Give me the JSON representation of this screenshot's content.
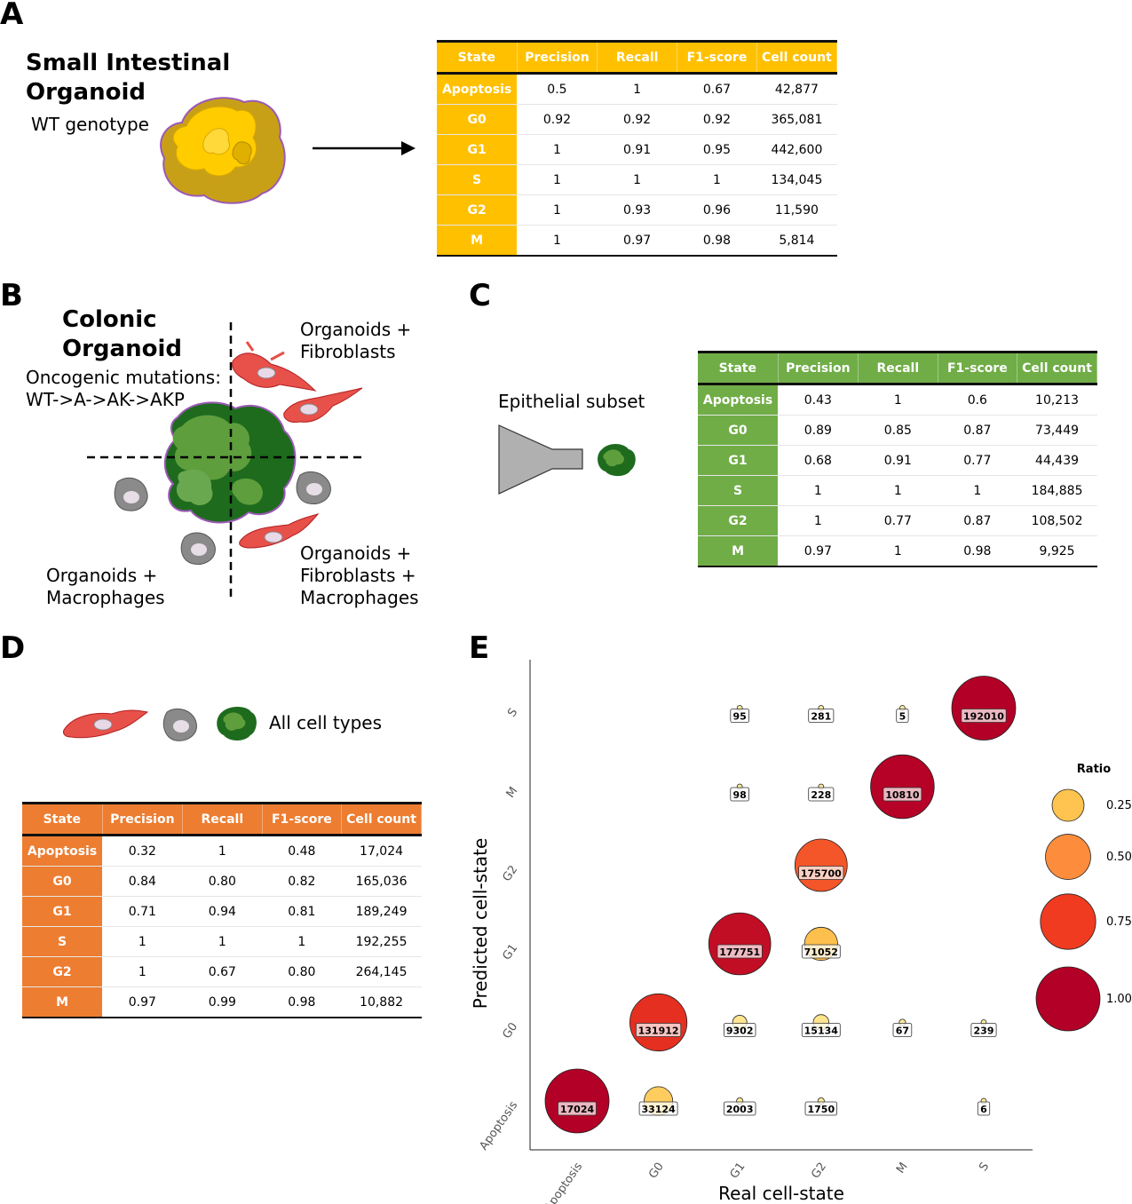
{
  "panels": {
    "A": "A",
    "B": "B",
    "C": "C",
    "D": "D",
    "E": "E"
  },
  "panelA": {
    "title_line1": "Small Intestinal",
    "title_line2": "Organoid",
    "subtitle": "WT genotype",
    "table": {
      "headers": [
        "State",
        "Precision",
        "Recall",
        "F1-score",
        "Cell count"
      ],
      "rows": [
        [
          "Apoptosis",
          "0.5",
          "1",
          "0.67",
          "42,877"
        ],
        [
          "G0",
          "0.92",
          "0.92",
          "0.92",
          "365,081"
        ],
        [
          "G1",
          "1",
          "0.91",
          "0.95",
          "442,600"
        ],
        [
          "S",
          "1",
          "1",
          "1",
          "134,045"
        ],
        [
          "G2",
          "1",
          "0.93",
          "0.96",
          "11,590"
        ],
        [
          "M",
          "1",
          "0.97",
          "0.98",
          "5,814"
        ]
      ]
    }
  },
  "panelB": {
    "title_line1": "Colonic",
    "title_line2": "Organoid",
    "mutations_line1": "Oncogenic mutations:",
    "mutations_line2": "WT->A->AK->AKP",
    "q_tr_line1": "Organoids +",
    "q_tr_line2": "Fibroblasts",
    "q_bl_line1": "Organoids +",
    "q_bl_line2": "Macrophages",
    "q_br_line1": "Organoids +",
    "q_br_line2": "Fibroblasts +",
    "q_br_line3": "Macrophages"
  },
  "panelC": {
    "label": "Epithelial subset",
    "table": {
      "headers": [
        "State",
        "Precision",
        "Recall",
        "F1-score",
        "Cell count"
      ],
      "rows": [
        [
          "Apoptosis",
          "0.43",
          "1",
          "0.6",
          "10,213"
        ],
        [
          "G0",
          "0.89",
          "0.85",
          "0.87",
          "73,449"
        ],
        [
          "G1",
          "0.68",
          "0.91",
          "0.77",
          "44,439"
        ],
        [
          "S",
          "1",
          "1",
          "1",
          "184,885"
        ],
        [
          "G2",
          "1",
          "0.77",
          "0.87",
          "108,502"
        ],
        [
          "M",
          "0.97",
          "1",
          "0.98",
          "9,925"
        ]
      ]
    }
  },
  "panelD": {
    "label": "All cell types",
    "table": {
      "headers": [
        "State",
        "Precision",
        "Recall",
        "F1-score",
        "Cell count"
      ],
      "rows": [
        [
          "Apoptosis",
          "0.32",
          "1",
          "0.48",
          "17,024"
        ],
        [
          "G0",
          "0.84",
          "0.80",
          "0.82",
          "165,036"
        ],
        [
          "G1",
          "0.71",
          "0.94",
          "0.81",
          "189,249"
        ],
        [
          "S",
          "1",
          "1",
          "1",
          "192,255"
        ],
        [
          "G2",
          "1",
          "0.67",
          "0.80",
          "264,145"
        ],
        [
          "M",
          "0.97",
          "0.99",
          "0.98",
          "10,882"
        ]
      ]
    }
  },
  "chart_data": {
    "type": "scatter",
    "xlabel": "Real cell-state",
    "ylabel": "Predicted cell-state",
    "x_categories": [
      "Apoptosis",
      "G0",
      "G1",
      "G2",
      "M",
      "S"
    ],
    "y_categories": [
      "Apoptosis",
      "G0",
      "G1",
      "G2",
      "M",
      "S"
    ],
    "legend_title": "Ratio",
    "legend_values": [
      0.25,
      0.5,
      0.75,
      1.0
    ],
    "legend_labels": [
      "0.25",
      "0.50",
      "0.75",
      "1.00"
    ],
    "legend_position": "right",
    "points": [
      {
        "x": "Apoptosis",
        "y": "Apoptosis",
        "count": 17024,
        "ratio": 1.0
      },
      {
        "x": "G0",
        "y": "Apoptosis",
        "count": 33124,
        "ratio": 0.2
      },
      {
        "x": "G1",
        "y": "Apoptosis",
        "count": 2003,
        "ratio": 0.01
      },
      {
        "x": "G2",
        "y": "Apoptosis",
        "count": 1750,
        "ratio": 0.01
      },
      {
        "x": "S",
        "y": "Apoptosis",
        "count": 6,
        "ratio": 0.0
      },
      {
        "x": "G0",
        "y": "G0",
        "count": 131912,
        "ratio": 0.8
      },
      {
        "x": "G1",
        "y": "G0",
        "count": 9302,
        "ratio": 0.05
      },
      {
        "x": "G2",
        "y": "G0",
        "count": 15134,
        "ratio": 0.06
      },
      {
        "x": "M",
        "y": "G0",
        "count": 67,
        "ratio": 0.01
      },
      {
        "x": "S",
        "y": "G0",
        "count": 239,
        "ratio": 0.0
      },
      {
        "x": "G1",
        "y": "G1",
        "count": 177751,
        "ratio": 0.94
      },
      {
        "x": "G2",
        "y": "G1",
        "count": 71052,
        "ratio": 0.27
      },
      {
        "x": "G2",
        "y": "G2",
        "count": 175700,
        "ratio": 0.67
      },
      {
        "x": "G1",
        "y": "M",
        "count": 98,
        "ratio": 0.0
      },
      {
        "x": "G2",
        "y": "M",
        "count": 228,
        "ratio": 0.0
      },
      {
        "x": "M",
        "y": "M",
        "count": 10810,
        "ratio": 0.99
      },
      {
        "x": "G1",
        "y": "S",
        "count": 95,
        "ratio": 0.0
      },
      {
        "x": "G2",
        "y": "S",
        "count": 281,
        "ratio": 0.0
      },
      {
        "x": "M",
        "y": "S",
        "count": 5,
        "ratio": 0.0
      },
      {
        "x": "S",
        "y": "S",
        "count": 192010,
        "ratio": 1.0
      }
    ],
    "colors": {
      "low": "#ffeda0",
      "mid1": "#fec44f",
      "mid2": "#fd8d3c",
      "mid3": "#f03b20",
      "high": "#b30026"
    }
  }
}
